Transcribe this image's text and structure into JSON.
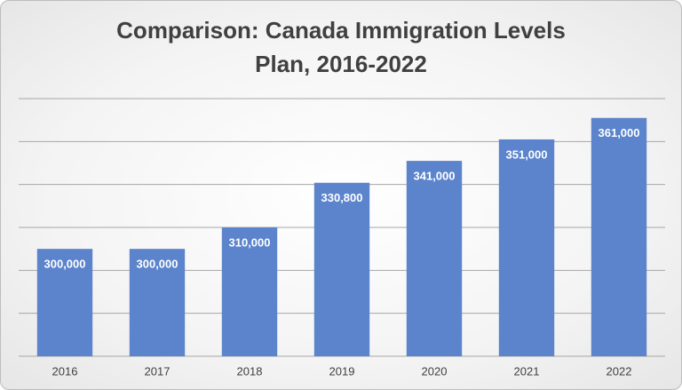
{
  "chart_data": {
    "type": "bar",
    "title": "Comparison: Canada Immigration Levels Plan, 2016-2022",
    "categories": [
      "2016",
      "2017",
      "2018",
      "2019",
      "2020",
      "2021",
      "2022"
    ],
    "values": [
      300000,
      300000,
      310000,
      330800,
      341000,
      351000,
      361000
    ],
    "value_labels": [
      "300,000",
      "300,000",
      "310,000",
      "330,800",
      "341,000",
      "351,000",
      "361,000"
    ],
    "color": "#5b84cc",
    "ylim": [
      250000,
      370000
    ],
    "yticks": [
      250000,
      270000,
      290000,
      310000,
      330000,
      350000,
      370000
    ],
    "grid": true
  }
}
